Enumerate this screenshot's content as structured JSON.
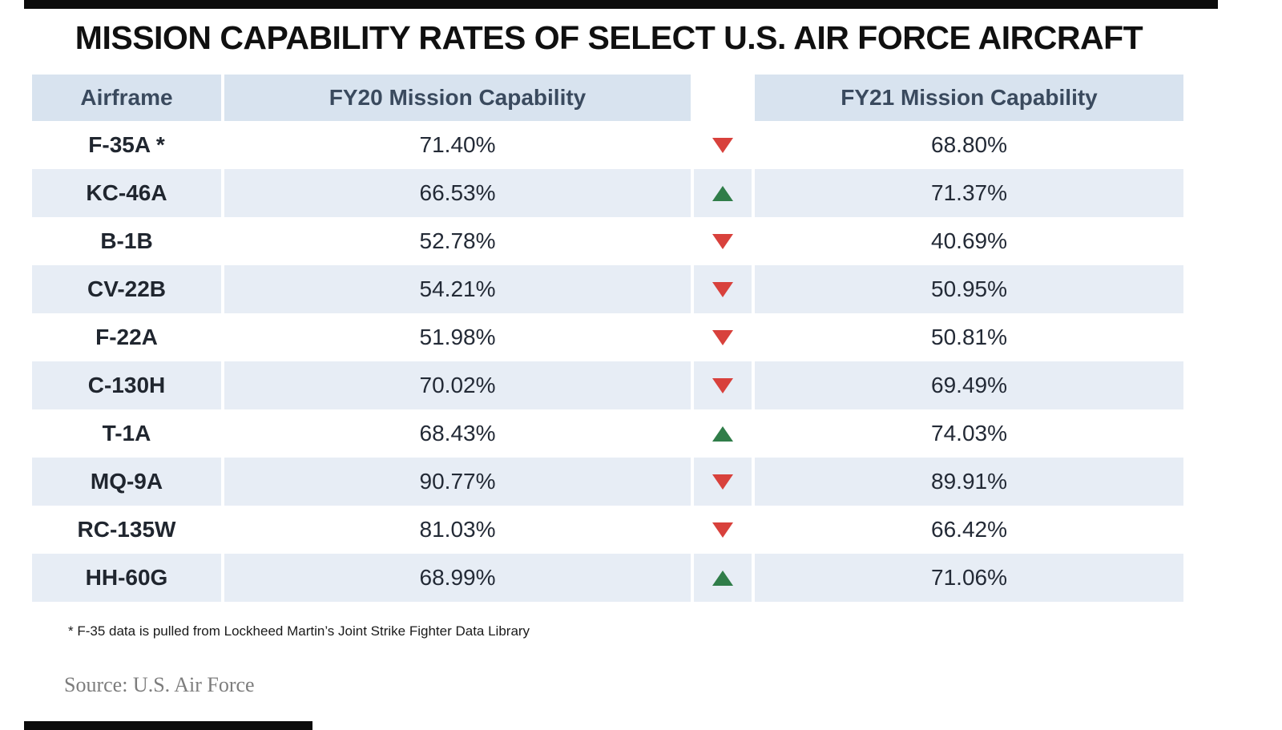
{
  "title": "MISSION CAPABILITY RATES OF SELECT U.S. AIR FORCE AIRCRAFT",
  "table": {
    "headers": [
      "Airframe",
      "FY20 Mission Capability",
      "",
      "FY21 Mission Capability"
    ],
    "rows": [
      {
        "airframe": "F-35A *",
        "fy20": "71.40%",
        "trend": "down",
        "fy21": "68.80%"
      },
      {
        "airframe": "KC-46A",
        "fy20": "66.53%",
        "trend": "up",
        "fy21": "71.37%"
      },
      {
        "airframe": "B-1B",
        "fy20": "52.78%",
        "trend": "down",
        "fy21": "40.69%"
      },
      {
        "airframe": "CV-22B",
        "fy20": "54.21%",
        "trend": "down",
        "fy21": "50.95%"
      },
      {
        "airframe": "F-22A",
        "fy20": "51.98%",
        "trend": "down",
        "fy21": "50.81%"
      },
      {
        "airframe": "C-130H",
        "fy20": "70.02%",
        "trend": "down",
        "fy21": "69.49%"
      },
      {
        "airframe": "T-1A",
        "fy20": "68.43%",
        "trend": "up",
        "fy21": "74.03%"
      },
      {
        "airframe": "MQ-9A",
        "fy20": "90.77%",
        "trend": "down",
        "fy21": "89.91%"
      },
      {
        "airframe": "RC-135W",
        "fy20": "81.03%",
        "trend": "down",
        "fy21": "66.42%"
      },
      {
        "airframe": "HH-60G",
        "fy20": "68.99%",
        "trend": "up",
        "fy21": "71.06%"
      }
    ]
  },
  "footnote": "* F-35 data is pulled from Lockheed Martin’s Joint Strike Fighter Data Library",
  "source": "Source: U.S. Air Force",
  "colors": {
    "up": "#307d49",
    "down": "#d8413c",
    "header_bg": "#d8e3ef",
    "stripe_bg": "#e7edf5"
  },
  "chart_data": {
    "type": "table",
    "title": "MISSION CAPABILITY RATES OF SELECT U.S. AIR FORCE AIRCRAFT",
    "categories": [
      "F-35A",
      "KC-46A",
      "B-1B",
      "CV-22B",
      "F-22A",
      "C-130H",
      "T-1A",
      "MQ-9A",
      "RC-135W",
      "HH-60G"
    ],
    "series": [
      {
        "name": "FY20 Mission Capability",
        "values": [
          71.4,
          66.53,
          52.78,
          54.21,
          51.98,
          70.02,
          68.43,
          90.77,
          81.03,
          68.99
        ]
      },
      {
        "name": "FY21 Mission Capability",
        "values": [
          68.8,
          71.37,
          40.69,
          50.95,
          50.81,
          69.49,
          74.03,
          89.91,
          66.42,
          71.06
        ]
      }
    ],
    "trend_fy20_to_fy21": [
      "down",
      "up",
      "down",
      "down",
      "down",
      "down",
      "up",
      "down",
      "down",
      "up"
    ],
    "footnote": "* F-35 data is pulled from Lockheed Martin’s Joint Strike Fighter Data Library",
    "source": "Source: U.S. Air Force",
    "legend_position": "none",
    "grid": false
  }
}
